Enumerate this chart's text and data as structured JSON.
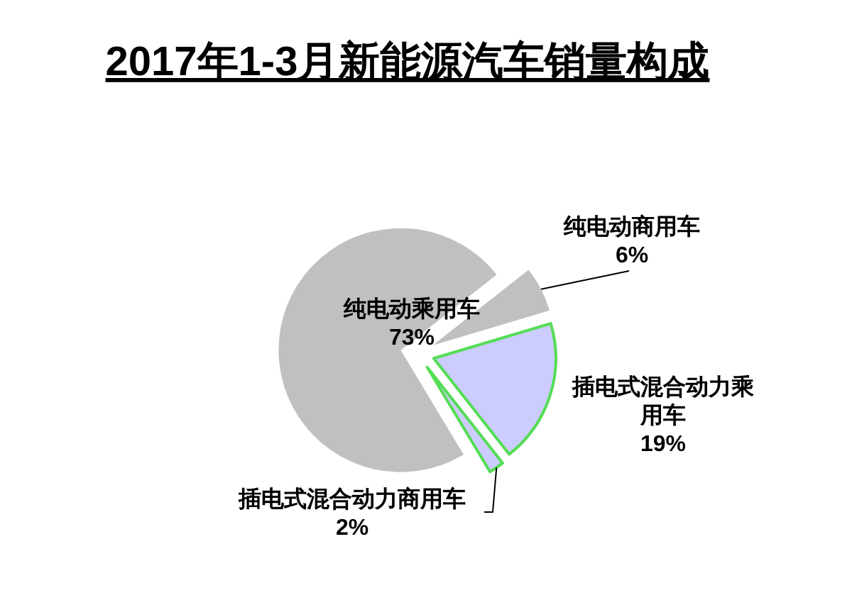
{
  "chart_data": {
    "type": "pie",
    "title": "2017年1-3月新能源汽车销量构成",
    "categories": [
      "纯电动乘用车",
      "纯电动商用车",
      "插电式混合动力乘用车",
      "插电式混合动力商用车"
    ],
    "values": [
      73,
      6,
      19,
      2
    ],
    "value_labels": [
      "73%",
      "6%",
      "19%",
      "2%"
    ],
    "colors": [
      "#c0c0c0",
      "#c0c0c0",
      "#ccccff",
      "#ccccff"
    ]
  }
}
